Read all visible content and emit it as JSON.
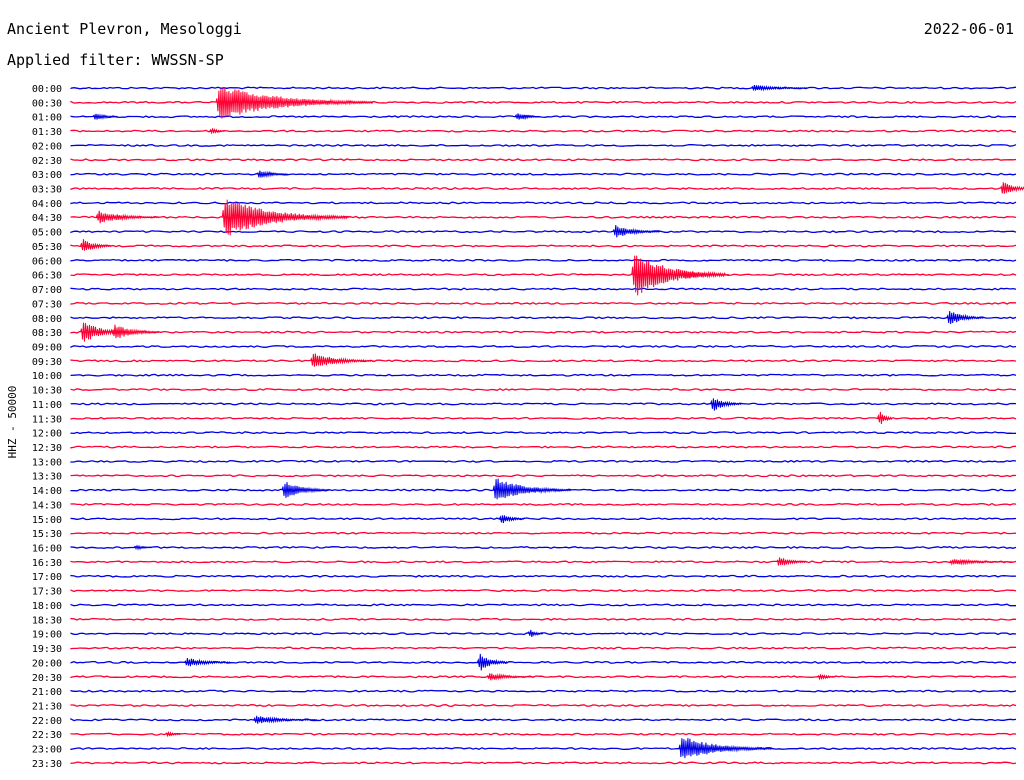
{
  "header": {
    "station": "Ancient Plevron, Mesologgi",
    "date": "2022-06-01",
    "filter": "Applied filter: WWSSN-SP"
  },
  "chart_data": {
    "type": "line",
    "title": "Ancient Plevron, Mesologgi",
    "subtitle": "Applied filter: WWSSN-SP",
    "ylabel": "HHZ - 50000",
    "colors": [
      "#0000e6",
      "#ff0033"
    ],
    "row_interval_minutes": 30,
    "rows": [
      "00:00",
      "00:30",
      "01:00",
      "01:30",
      "02:00",
      "02:30",
      "03:00",
      "03:30",
      "04:00",
      "04:30",
      "05:00",
      "05:30",
      "06:00",
      "06:30",
      "07:00",
      "07:30",
      "08:00",
      "08:30",
      "09:00",
      "09:30",
      "10:00",
      "10:30",
      "11:00",
      "11:30",
      "12:00",
      "12:30",
      "13:00",
      "13:30",
      "14:00",
      "14:30",
      "15:00",
      "15:30",
      "16:00",
      "16:30",
      "17:00",
      "17:30",
      "18:00",
      "18:30",
      "19:00",
      "19:30",
      "20:00",
      "20:30",
      "21:00",
      "21:30",
      "22:00",
      "22:30",
      "23:00",
      "23:30"
    ],
    "events": [
      {
        "row": 0,
        "minute": 21.6,
        "amplitude": 4,
        "duration_min": 1.8
      },
      {
        "row": 1,
        "minute": 4.6,
        "amplitude": 20,
        "duration_min": 5
      },
      {
        "row": 2,
        "minute": 0.7,
        "amplitude": 6,
        "duration_min": 0.8
      },
      {
        "row": 2,
        "minute": 14.1,
        "amplitude": 6,
        "duration_min": 0.8
      },
      {
        "row": 3,
        "minute": 4.4,
        "amplitude": 5,
        "duration_min": 0.5
      },
      {
        "row": 6,
        "minute": 5.9,
        "amplitude": 6,
        "duration_min": 1
      },
      {
        "row": 7,
        "minute": 29.5,
        "amplitude": 10,
        "duration_min": 1
      },
      {
        "row": 9,
        "minute": 0.8,
        "amplitude": 8,
        "duration_min": 2
      },
      {
        "row": 9,
        "minute": 4.8,
        "amplitude": 22,
        "duration_min": 4
      },
      {
        "row": 10,
        "minute": 17.2,
        "amplitude": 8,
        "duration_min": 1.5
      },
      {
        "row": 11,
        "minute": 0.3,
        "amplitude": 10,
        "duration_min": 1
      },
      {
        "row": 13,
        "minute": 17.8,
        "amplitude": 26,
        "duration_min": 3
      },
      {
        "row": 13,
        "minute": 19.4,
        "amplitude": 6,
        "duration_min": 1.5
      },
      {
        "row": 16,
        "minute": 27.8,
        "amplitude": 10,
        "duration_min": 1.2
      },
      {
        "row": 17,
        "minute": 0.3,
        "amplitude": 14,
        "duration_min": 1.5
      },
      {
        "row": 17,
        "minute": 1.3,
        "amplitude": 10,
        "duration_min": 1.5
      },
      {
        "row": 19,
        "minute": 7.6,
        "amplitude": 10,
        "duration_min": 2
      },
      {
        "row": 22,
        "minute": 20.3,
        "amplitude": 10,
        "duration_min": 1
      },
      {
        "row": 23,
        "minute": 25.6,
        "amplitude": 12,
        "duration_min": 0.5
      },
      {
        "row": 28,
        "minute": 6.7,
        "amplitude": 12,
        "duration_min": 1.5
      },
      {
        "row": 28,
        "minute": 13.4,
        "amplitude": 14,
        "duration_min": 2.5
      },
      {
        "row": 30,
        "minute": 13.6,
        "amplitude": 7,
        "duration_min": 0.8
      },
      {
        "row": 32,
        "minute": 2.0,
        "amplitude": 4,
        "duration_min": 0.6
      },
      {
        "row": 33,
        "minute": 22.4,
        "amplitude": 7,
        "duration_min": 1
      },
      {
        "row": 33,
        "minute": 27.9,
        "amplitude": 4,
        "duration_min": 2
      },
      {
        "row": 38,
        "minute": 14.5,
        "amplitude": 7,
        "duration_min": 0.5
      },
      {
        "row": 40,
        "minute": 3.6,
        "amplitude": 6,
        "duration_min": 1.5
      },
      {
        "row": 40,
        "minute": 12.9,
        "amplitude": 12,
        "duration_min": 1
      },
      {
        "row": 41,
        "minute": 13.2,
        "amplitude": 5,
        "duration_min": 1.5
      },
      {
        "row": 41,
        "minute": 23.7,
        "amplitude": 5,
        "duration_min": 0.6
      },
      {
        "row": 44,
        "minute": 5.8,
        "amplitude": 5,
        "duration_min": 2
      },
      {
        "row": 45,
        "minute": 3.0,
        "amplitude": 4,
        "duration_min": 0.5
      },
      {
        "row": 46,
        "minute": 19.3,
        "amplitude": 14,
        "duration_min": 3
      }
    ]
  }
}
